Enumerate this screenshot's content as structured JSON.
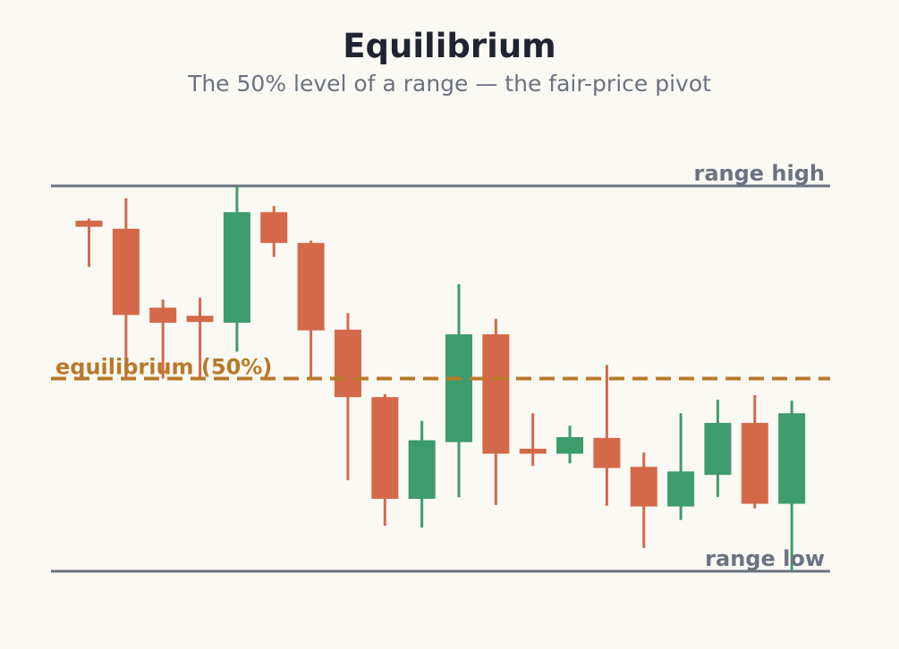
{
  "chart_data": {
    "type": "candlestick",
    "title": "Equilibrium",
    "subtitle": "The 50% level of a range — the fair-price pivot",
    "ylim": [
      0,
      100
    ],
    "range_high": 100,
    "range_low": 0,
    "equilibrium": 50,
    "annotations": {
      "range_high": "range high",
      "range_low": "range low",
      "equilibrium": "equilibrium (50%)"
    },
    "colors": {
      "up": "#3d9c6c",
      "down": "#d4694a",
      "range_lines": "#6b7280",
      "equilibrium": "#b8792a"
    },
    "candles": [
      {
        "open": 91.0,
        "high": 91.5,
        "low": 79.0,
        "close": 89.4
      },
      {
        "open": 88.9,
        "high": 96.8,
        "low": 50.0,
        "close": 66.5
      },
      {
        "open": 68.4,
        "high": 70.5,
        "low": 50.0,
        "close": 64.5
      },
      {
        "open": 66.3,
        "high": 71.0,
        "low": 50.0,
        "close": 64.7
      },
      {
        "open": 64.5,
        "high": 100.0,
        "low": 57.0,
        "close": 93.2
      },
      {
        "open": 93.2,
        "high": 94.8,
        "low": 81.6,
        "close": 85.2
      },
      {
        "open": 85.2,
        "high": 85.8,
        "low": 50.0,
        "close": 62.5
      },
      {
        "open": 62.7,
        "high": 67.0,
        "low": 23.6,
        "close": 45.2
      },
      {
        "open": 45.2,
        "high": 46.0,
        "low": 11.8,
        "close": 18.8
      },
      {
        "open": 18.8,
        "high": 39.0,
        "low": 11.3,
        "close": 34.0
      },
      {
        "open": 33.5,
        "high": 74.5,
        "low": 19.2,
        "close": 61.5
      },
      {
        "open": 61.5,
        "high": 65.5,
        "low": 17.2,
        "close": 30.5
      },
      {
        "open": 31.8,
        "high": 41.0,
        "low": 27.3,
        "close": 30.5
      },
      {
        "open": 30.5,
        "high": 37.8,
        "low": 28.0,
        "close": 34.8
      },
      {
        "open": 34.6,
        "high": 53.5,
        "low": 17.0,
        "close": 26.8
      },
      {
        "open": 27.1,
        "high": 30.8,
        "low": 6.0,
        "close": 16.8
      },
      {
        "open": 16.8,
        "high": 41.0,
        "low": 13.3,
        "close": 25.9
      },
      {
        "open": 25.0,
        "high": 44.5,
        "low": 19.3,
        "close": 38.5
      },
      {
        "open": 38.5,
        "high": 45.7,
        "low": 16.3,
        "close": 17.5
      },
      {
        "open": 17.5,
        "high": 44.3,
        "low": 0.0,
        "close": 41.0
      }
    ]
  }
}
